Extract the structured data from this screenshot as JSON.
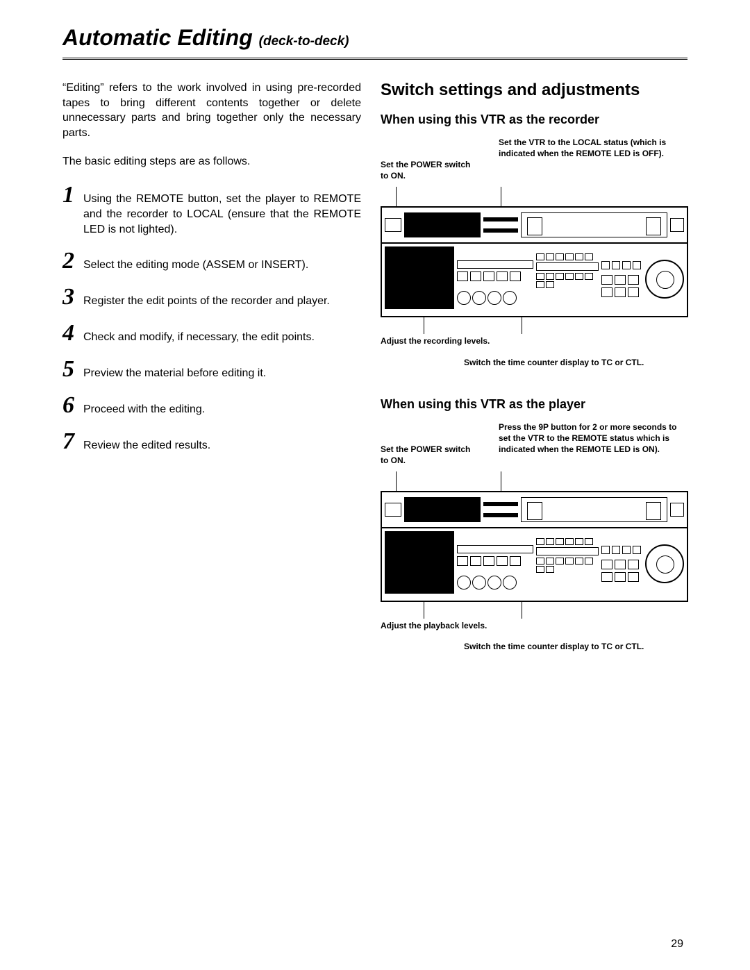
{
  "title_main": "Automatic Editing",
  "title_sub": "(deck-to-deck)",
  "intro": "“Editing” refers to the work involved in using pre-recorded tapes to bring different contents together or delete unnecessary parts and bring together only the necessary parts.",
  "intro2": "The basic editing steps are as follows.",
  "steps": [
    "Using the REMOTE button, set the player to REMOTE and the recorder to LOCAL (ensure that the REMOTE LED is not lighted).",
    "Select the editing mode (ASSEM or INSERT).",
    "Register the edit points of the recorder and player.",
    "Check and modify, if necessary, the edit points.",
    "Preview the material before editing it.",
    "Proceed with the editing.",
    "Review the edited results."
  ],
  "right": {
    "h2": "Switch settings and adjustments",
    "recorder": {
      "h3": "When using this VTR as the recorder",
      "cal_power": "Set the POWER switch to ON.",
      "cal_local": "Set the VTR to the LOCAL status (which is indicated when the REMOTE LED is OFF).",
      "cal_levels": "Adjust the recording levels.",
      "cal_tc": "Switch the time counter display to TC or CTL."
    },
    "player": {
      "h3": "When using this VTR as the player",
      "cal_power": "Set the POWER switch to ON.",
      "cal_remote": "Press the 9P button for 2 or more seconds to set the VTR to the REMOTE status which is indicated when the REMOTE LED is ON).",
      "cal_levels": "Adjust the playback levels.",
      "cal_tc": "Switch the time counter display to TC or CTL."
    }
  },
  "page_number": "29"
}
